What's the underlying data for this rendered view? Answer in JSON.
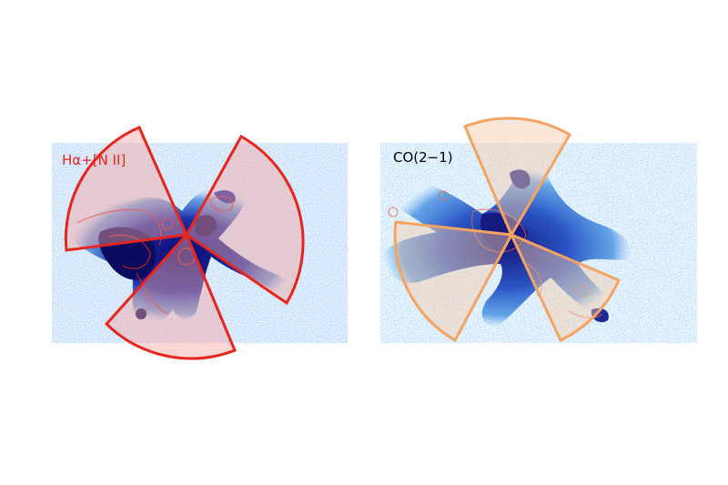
{
  "panels": [
    {
      "id": "halpha",
      "label": "Hα+[N II]",
      "label_color": "#e8251c",
      "wedge_color": "#e8251c"
    },
    {
      "id": "co",
      "label": "CO(2−1)",
      "label_color": "#000000",
      "wedge_color": "#f4a460"
    }
  ]
}
